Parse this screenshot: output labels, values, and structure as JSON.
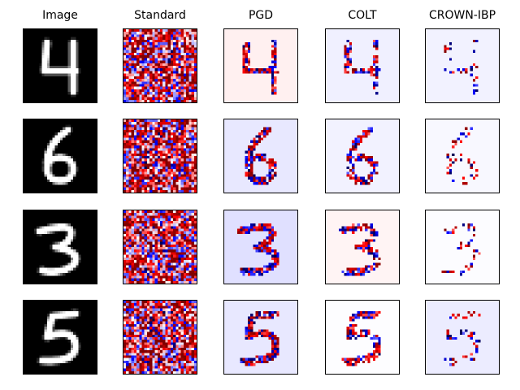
{
  "columns": [
    {
      "title": "Image",
      "kind": "image"
    },
    {
      "title": "Standard",
      "kind": "standard"
    },
    {
      "title": "PGD",
      "kind": "pgd"
    },
    {
      "title": "COLT",
      "kind": "colt"
    },
    {
      "title": "CROWN-IBP",
      "kind": "crown"
    }
  ],
  "rows": [
    {
      "digit": 4,
      "tints": {
        "pgd": "#fff0f0",
        "colt": "#f0f0ff",
        "crown": "#f2f2ff"
      }
    },
    {
      "digit": 6,
      "tints": {
        "pgd": "#e8e8ff",
        "colt": "#f2f2ff",
        "crown": "#f8f8ff"
      }
    },
    {
      "digit": 3,
      "tints": {
        "pgd": "#e0e0ff",
        "colt": "#fff4f4",
        "crown": "#fcfcff"
      }
    },
    {
      "digit": 5,
      "tints": {
        "pgd": "#e8e8ff",
        "colt": "#fdfdff",
        "crown": "#ececff"
      }
    }
  ],
  "colormap": {
    "negative": "#00004c",
    "neutral": "#ffffff",
    "positive": "#800000"
  }
}
